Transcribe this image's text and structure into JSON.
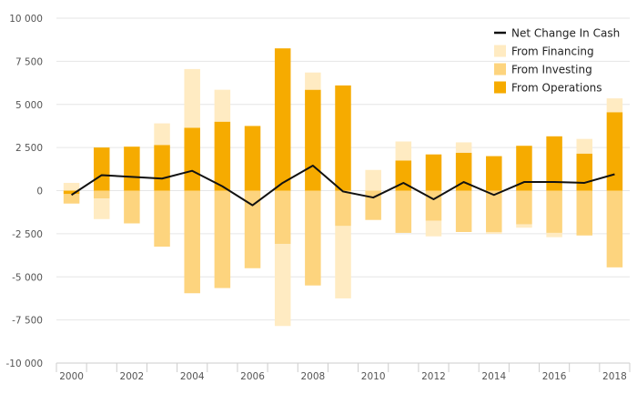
{
  "chart_data": {
    "type": "bar",
    "subtype": "stacked-bar-with-line",
    "title": "",
    "xlabel": "",
    "ylabel": "",
    "ylim": [
      -10000,
      10000
    ],
    "y_ticks": [
      10000,
      7500,
      5000,
      2500,
      0,
      -2500,
      -5000,
      -7500,
      -10000
    ],
    "y_tick_labels": [
      "10 000",
      "7 500",
      "5 000",
      "2 500",
      "0",
      "-2 500",
      "-5 000",
      "-7 500",
      "-10 000"
    ],
    "categories": [
      "2000",
      "2001",
      "2002",
      "2003",
      "2004",
      "2005",
      "2006",
      "2007",
      "2008",
      "2009",
      "2010",
      "2011",
      "2012",
      "2013",
      "2014",
      "2015",
      "2016",
      "2017",
      "2018"
    ],
    "x_tick_labels": [
      "2000",
      "2002",
      "2004",
      "2006",
      "2008",
      "2010",
      "2012",
      "2014",
      "2016",
      "2018"
    ],
    "grid": true,
    "legend_position": "top-right",
    "series": [
      {
        "name": "From Operations",
        "kind": "bar",
        "color": "#f6ab00",
        "values": [
          -200,
          2500,
          2550,
          2650,
          3650,
          4000,
          3750,
          8250,
          5850,
          6100,
          0,
          1750,
          2100,
          2200,
          2000,
          2600,
          3150,
          2150,
          4550
        ]
      },
      {
        "name": "From Investing",
        "kind": "bar",
        "color": "#fdd47e",
        "values": [
          -550,
          -450,
          -1900,
          -3250,
          -5950,
          -5650,
          -4500,
          -3100,
          -5500,
          -2050,
          -1700,
          -2450,
          -1750,
          -2400,
          -2400,
          -1950,
          -2450,
          -2600,
          -4450
        ]
      },
      {
        "name": "From Financing",
        "kind": "bar",
        "color": "#ffebc2",
        "values": [
          450,
          -1200,
          0,
          1250,
          3400,
          1850,
          0,
          -4750,
          1000,
          -4200,
          1200,
          1100,
          -900,
          600,
          -100,
          -200,
          -250,
          850,
          800
        ]
      },
      {
        "name": "Net Change In Cash",
        "kind": "line",
        "color": "#111111",
        "values": [
          -250,
          900,
          800,
          700,
          1150,
          250,
          -850,
          450,
          1450,
          -50,
          -400,
          450,
          -500,
          500,
          -250,
          500,
          500,
          450,
          950
        ]
      }
    ],
    "legend_order": [
      "Net Change In Cash",
      "From Financing",
      "From Investing",
      "From Operations"
    ]
  },
  "colors": {
    "grid": "#e6e6e6",
    "axis": "#cccccc",
    "background": "#ffffff"
  }
}
